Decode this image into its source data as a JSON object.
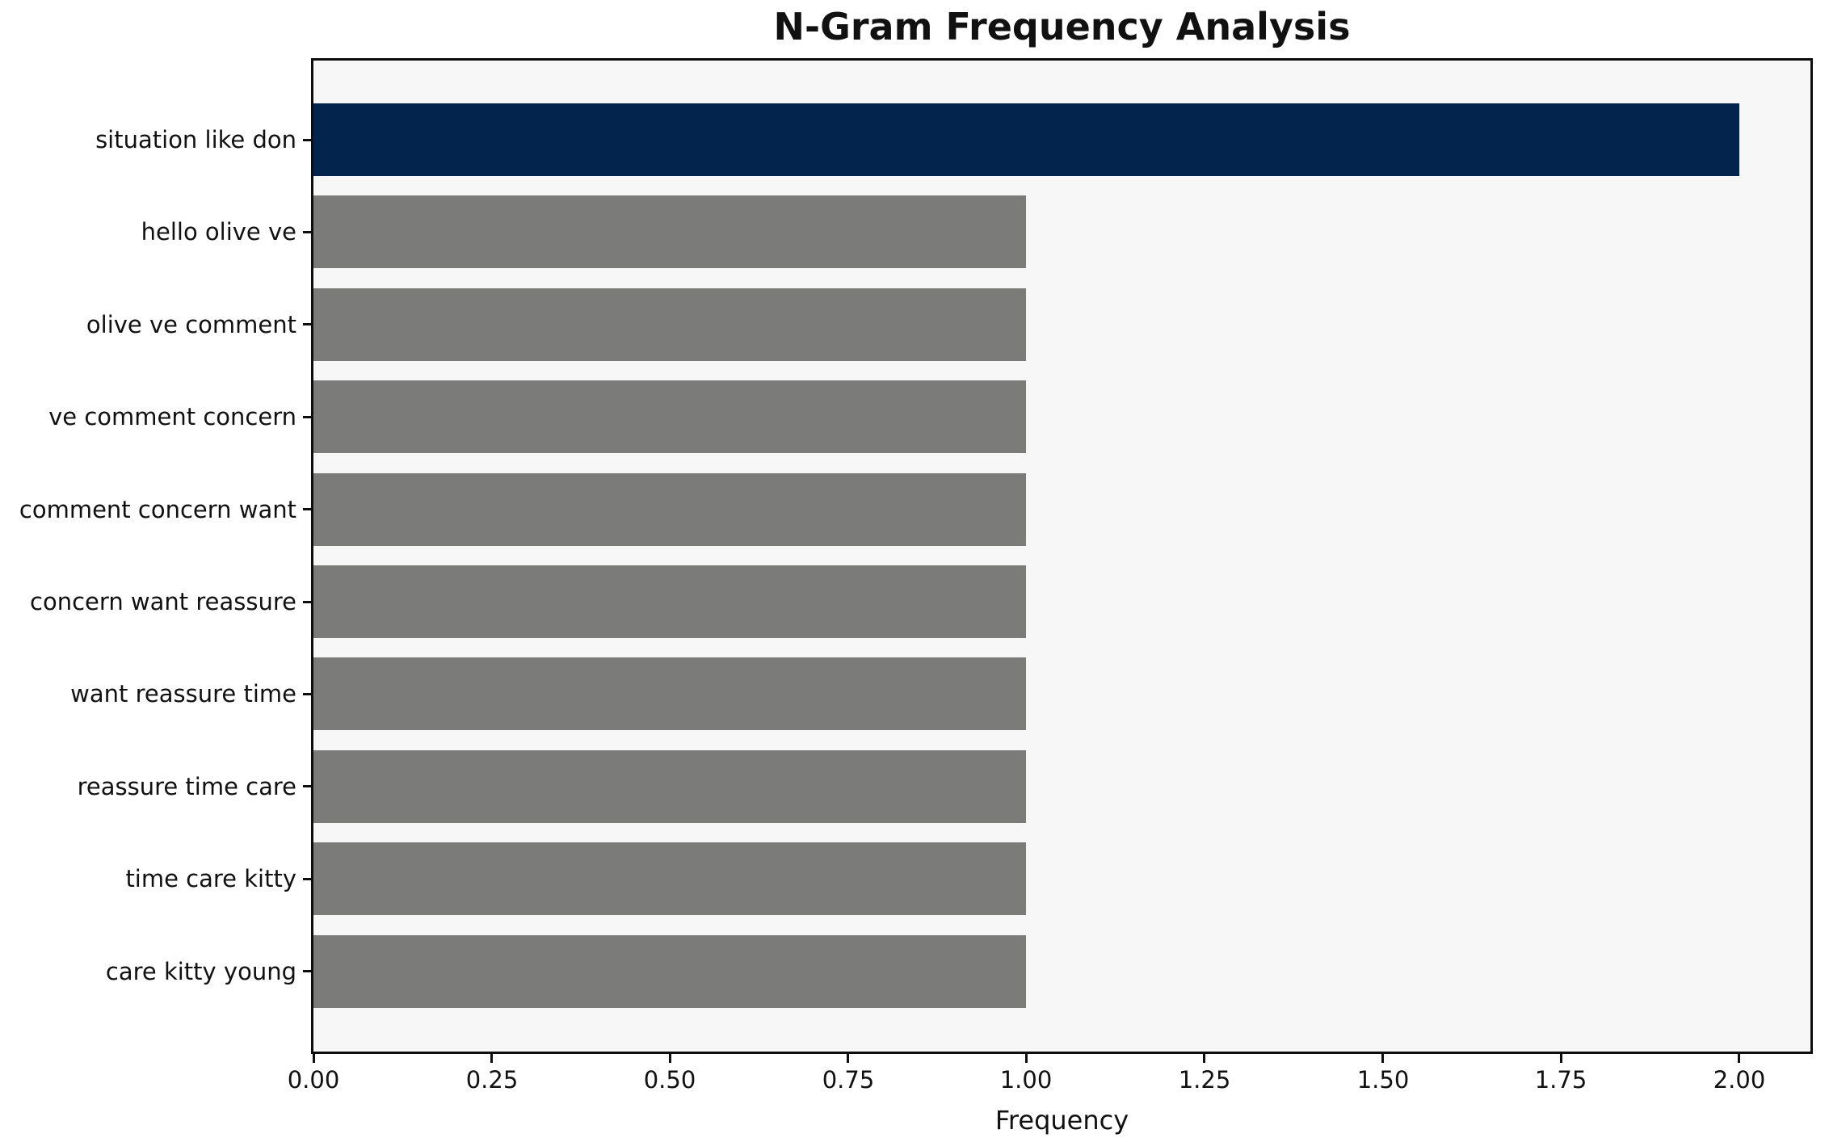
{
  "title": "N-Gram Frequency Analysis",
  "chart_data": {
    "type": "bar",
    "orientation": "horizontal",
    "title": "N-Gram Frequency Analysis",
    "xlabel": "Frequency",
    "ylabel": "",
    "categories": [
      "situation like don",
      "hello olive ve",
      "olive ve comment",
      "ve comment concern",
      "comment concern want",
      "concern want reassure",
      "want reassure time",
      "reassure time care",
      "time care kitty",
      "care kitty young"
    ],
    "values": [
      2,
      1,
      1,
      1,
      1,
      1,
      1,
      1,
      1,
      1
    ],
    "xlim": [
      0,
      2.1
    ],
    "x_ticks": [
      0,
      0.25,
      0.5,
      0.75,
      1,
      1.25,
      1.5,
      1.75,
      2
    ],
    "x_tick_labels": [
      "0.00",
      "0.25",
      "0.50",
      "0.75",
      "1.00",
      "1.25",
      "1.50",
      "1.75",
      "2.00"
    ],
    "grid": false,
    "legend": null,
    "colors": {
      "highlight_bar": "#02244d",
      "default_bar": "#7b7b79",
      "plot_background": "#f7f7f7",
      "figure_background": "#ffffff",
      "spine": "#0e0e0e",
      "text": "#111111"
    }
  }
}
